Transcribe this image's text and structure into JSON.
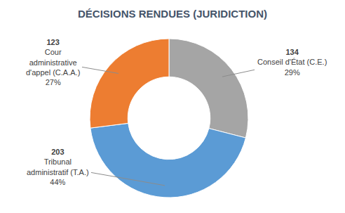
{
  "chart_data": {
    "type": "pie",
    "title": "DÉCISIONS RENDUES (JURIDICTION)",
    "categories": [
      "Conseil d'État (C.E.)",
      "Tribunal\nadministratif (T.A.)",
      "Cour\nadministrative\nd'appel (C.A.A.)"
    ],
    "values": [
      29,
      44,
      27
    ],
    "value_labels": [
      "29%",
      "44%",
      "27%"
    ],
    "counts": [
      134,
      203,
      123
    ],
    "colors": [
      "#a5a5a5",
      "#5b9bd5",
      "#ed7d31"
    ],
    "data_labels": true
  }
}
